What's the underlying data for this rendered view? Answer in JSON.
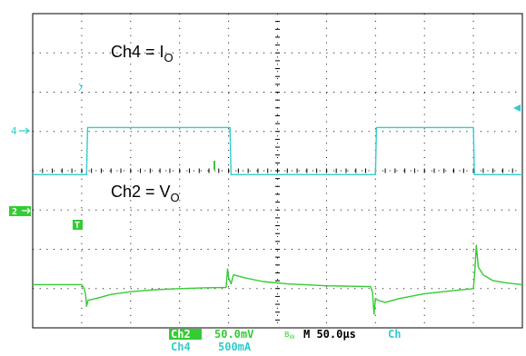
{
  "chart_data": {
    "type": "line",
    "title": "",
    "x_divisions": 10,
    "y_divisions": 8,
    "grid": true,
    "x_unit": "µs",
    "time_per_div_us": 50,
    "annotations": [
      {
        "name": "ch4-label",
        "main": "Ch4 = I",
        "sub": "O"
      },
      {
        "name": "ch2-label",
        "main": "Ch2 = V",
        "sub": "O"
      }
    ],
    "channel_markers": {
      "ch4": "4",
      "ch2": "2"
    },
    "trigger_marker": "T",
    "series": [
      {
        "name": "Ch4",
        "color": "#33cccc",
        "points": [
          [
            0,
            -0.1
          ],
          [
            1.1,
            -0.1
          ],
          [
            1.12,
            1.1
          ],
          [
            4.03,
            1.1
          ],
          [
            4.05,
            -0.1
          ],
          [
            7.0,
            -0.1
          ],
          [
            7.02,
            1.1
          ],
          [
            9.0,
            1.1
          ],
          [
            9.02,
            -0.1
          ],
          [
            10,
            -0.1
          ]
        ]
      },
      {
        "name": "Ch2",
        "color": "#33cc33",
        "points": [
          [
            0,
            -2.9
          ],
          [
            1.0,
            -2.9
          ],
          [
            1.05,
            -3.0
          ],
          [
            1.08,
            -3.15
          ],
          [
            1.1,
            -3.45
          ],
          [
            1.13,
            -3.3
          ],
          [
            1.3,
            -3.25
          ],
          [
            1.6,
            -3.15
          ],
          [
            2.0,
            -3.08
          ],
          [
            2.5,
            -3.03
          ],
          [
            3.0,
            -3.0
          ],
          [
            3.5,
            -2.98
          ],
          [
            3.95,
            -2.97
          ],
          [
            3.98,
            -2.5
          ],
          [
            4.0,
            -2.72
          ],
          [
            4.05,
            -2.88
          ],
          [
            4.1,
            -2.65
          ],
          [
            4.3,
            -2.72
          ],
          [
            4.7,
            -2.82
          ],
          [
            5.2,
            -2.88
          ],
          [
            6.0,
            -2.93
          ],
          [
            6.9,
            -2.95
          ],
          [
            6.94,
            -3.1
          ],
          [
            6.97,
            -3.65
          ],
          [
            7.0,
            -3.25
          ],
          [
            7.05,
            -3.3
          ],
          [
            7.2,
            -3.35
          ],
          [
            7.5,
            -3.25
          ],
          [
            8.0,
            -3.13
          ],
          [
            8.6,
            -3.05
          ],
          [
            9.0,
            -3.0
          ],
          [
            9.03,
            -2.55
          ],
          [
            9.06,
            -1.9
          ],
          [
            9.1,
            -2.45
          ],
          [
            9.2,
            -2.65
          ],
          [
            9.4,
            -2.8
          ],
          [
            9.7,
            -2.86
          ],
          [
            10,
            -2.9
          ]
        ]
      }
    ]
  },
  "readout": {
    "ch2_label": "Ch2",
    "ch2_scale": "50.0mV",
    "bw_symbol": "B",
    "bw_sub": "W",
    "timebase": "M 50.0µs",
    "trigger_source": "Ch",
    "ch4_label": "Ch4",
    "ch4_scale": "500mA"
  }
}
